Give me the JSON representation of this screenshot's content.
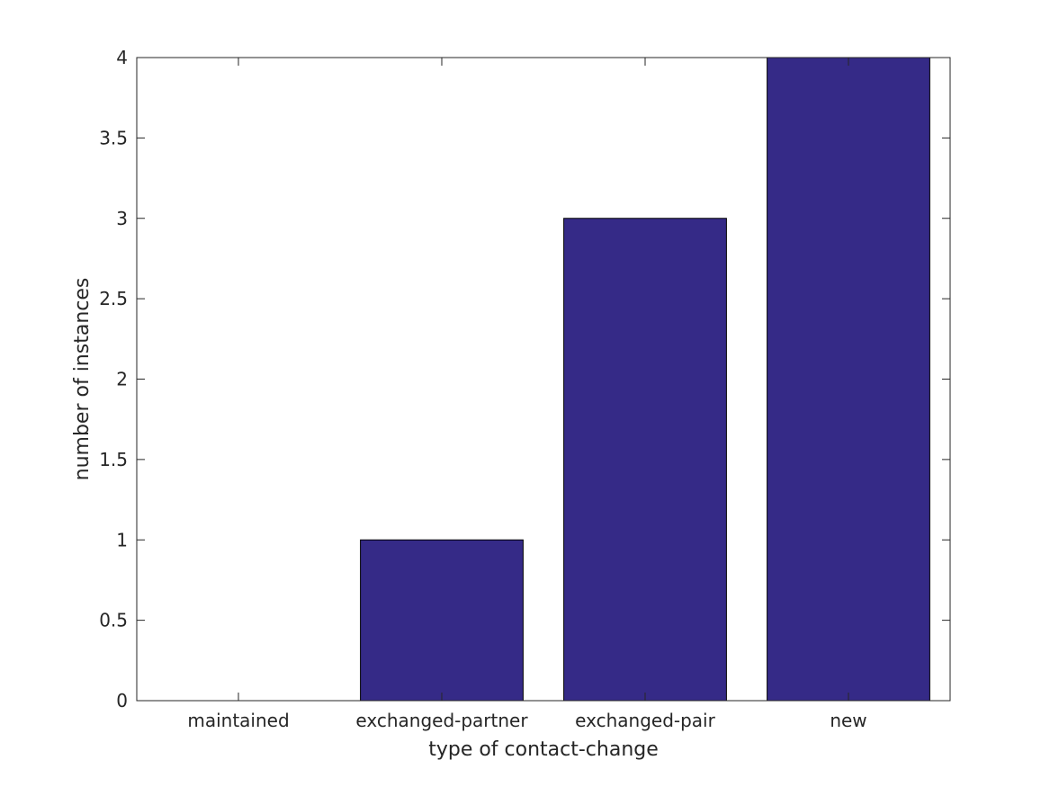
{
  "chart_data": {
    "type": "bar",
    "categories": [
      "maintained",
      "exchanged-partner",
      "exchanged-pair",
      "new"
    ],
    "values": [
      0,
      1,
      3,
      4
    ],
    "title": "",
    "xlabel": "type of contact-change",
    "ylabel": "number of instances",
    "ylim": [
      0,
      4
    ],
    "yticks": [
      0,
      0.5,
      1,
      1.5,
      2,
      2.5,
      3,
      3.5,
      4
    ],
    "ytick_labels": [
      "0",
      "0.5",
      "1",
      "1.5",
      "2",
      "2.5",
      "3",
      "3.5",
      "4"
    ],
    "grid": false,
    "legend": "none",
    "bar_color": "#352a87",
    "bar_edge_color": "#000000"
  }
}
